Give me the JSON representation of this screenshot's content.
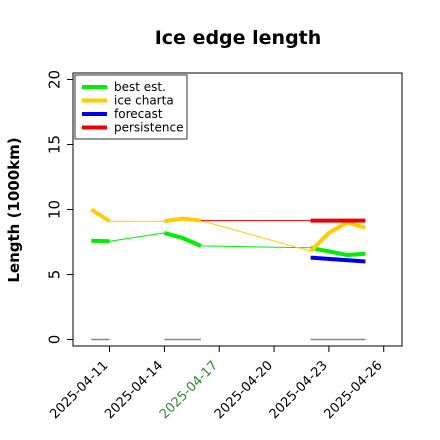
{
  "chart_data": {
    "type": "line",
    "title": "Ice edge length",
    "xlabel": "",
    "ylabel": "Length (1000km)",
    "ylim": [
      -0.5,
      20.5
    ],
    "y_ticks": [
      "0",
      "5",
      "10",
      "15",
      "20"
    ],
    "y_tick_values": [
      0,
      5,
      10,
      15,
      20
    ],
    "x_tick_dates": [
      "2025-04-11",
      "2025-04-14",
      "2025-04-17",
      "2025-04-20",
      "2025-04-23",
      "2025-04-26"
    ],
    "x_tick_colors": [
      "#000000",
      "#000000",
      "#2e8b2e",
      "#000000",
      "#000000",
      "#000000"
    ],
    "x_range": [
      "2025-04-09",
      "2025-04-27"
    ],
    "grid": false,
    "legend_position": "top-left",
    "series": [
      {
        "name": "best est.",
        "color": "#00ee00",
        "segments": [
          {
            "x": [
              "2025-04-10",
              "2025-04-11"
            ],
            "y": [
              7.6,
              7.55
            ]
          },
          {
            "x": [
              "2025-04-11",
              "2025-04-14"
            ],
            "y": [
              7.55,
              8.2
            ],
            "thin": true
          },
          {
            "x": [
              "2025-04-14",
              "2025-04-15",
              "2025-04-16"
            ],
            "y": [
              8.2,
              7.8,
              7.2
            ]
          },
          {
            "x": [
              "2025-04-16",
              "2025-04-22"
            ],
            "y": [
              7.2,
              7.05
            ],
            "thin": true
          },
          {
            "x": [
              "2025-04-22",
              "2025-04-24",
              "2025-04-25"
            ],
            "y": [
              7.05,
              6.5,
              6.6
            ]
          }
        ]
      },
      {
        "name": "ice charta",
        "color": "#ffcc00",
        "segments": [
          {
            "x": [
              "2025-04-10",
              "2025-04-11"
            ],
            "y": [
              10.0,
              9.1
            ]
          },
          {
            "x": [
              "2025-04-11",
              "2025-04-14"
            ],
            "y": [
              9.1,
              9.1
            ],
            "thin": true
          },
          {
            "x": [
              "2025-04-14",
              "2025-04-15",
              "2025-04-16"
            ],
            "y": [
              9.1,
              9.3,
              9.15
            ]
          },
          {
            "x": [
              "2025-04-16",
              "2025-04-22"
            ],
            "y": [
              9.15,
              6.8
            ],
            "thin": true
          },
          {
            "x": [
              "2025-04-22",
              "2025-04-23",
              "2025-04-24",
              "2025-04-25"
            ],
            "y": [
              6.8,
              8.2,
              9.0,
              8.6
            ]
          }
        ]
      },
      {
        "name": "forecast",
        "color": "#0000ee",
        "segments": [
          {
            "x": [
              "2025-04-22",
              "2025-04-25"
            ],
            "y": [
              6.3,
              6.0
            ]
          }
        ]
      },
      {
        "name": "persistence",
        "color": "#ee0000",
        "segments": [
          {
            "x": [
              "2025-04-16",
              "2025-04-22"
            ],
            "y": [
              9.15,
              9.15
            ],
            "thin": true
          },
          {
            "x": [
              "2025-04-22",
              "2025-04-25"
            ],
            "y": [
              9.15,
              9.15
            ]
          }
        ]
      }
    ],
    "baseline_marks": [
      {
        "x": [
          "2025-04-10",
          "2025-04-11"
        ],
        "y": [
          0,
          0
        ],
        "color": "#888888"
      },
      {
        "x": [
          "2025-04-14",
          "2025-04-16"
        ],
        "y": [
          0,
          0
        ],
        "color": "#888888"
      },
      {
        "x": [
          "2025-04-22",
          "2025-04-25"
        ],
        "y": [
          0,
          0
        ],
        "color": "#888888"
      }
    ]
  }
}
